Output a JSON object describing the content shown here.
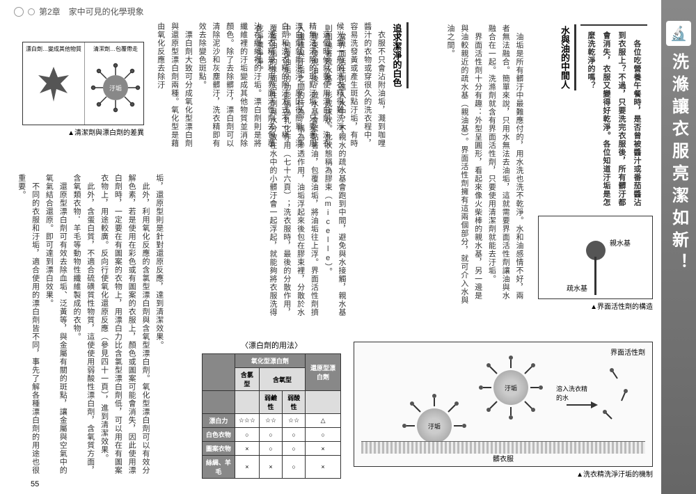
{
  "page": {
    "chapter_label": "第2章　家中可見的化學現象",
    "page_number": "55",
    "main_title": "洗滌讓衣服亮潔如新！"
  },
  "intro": {
    "text": "　各位吃營養午餐時，是否曾被醬汁或番茄醬沾到衣服上？不過，只要洗完衣服後，所有髒汙都會消失，衣服又變得好乾淨。各位知道汙垢是怎麼洗乾淨的嗎？"
  },
  "sections": {
    "s1_title": "水與油的中間人",
    "s1_body": "　油垢是所有髒汙中最難應付的，用水洗也洗不乾淨。水和油感情不好，兩者無法融合。簡單來說，只用水無法去油垢，這就需要界面活性劑讓油與水融合在一起。洗滌劑就含有界面活性劑，只要使用清潔劑就能去汙垢。\n　界面活性劑十分有趣：外型呈圓形，看起來像火柴棒的親水基，另一邊是與油較親近的疏水基（親油基）。界面活性劑擁有這兩個部分，就可介入水與油之間。",
    "s2_title": "追求潔淨的白色",
    "s2_top": "　衣服不只會沾附油垢，濺到咖哩醬汁的衣物或穿很久的洗衣程中，容易洗發黃或產生斑點汙垢，有時候光靠一般的洗衣精很難洗淨。\n　這個時候就要使用漂白劑。洗衣精無法清除的斑點汙垢，只要善用漂白劑就能洗淨。原因很簡單，漂白劑和洗衣精的除汙方式不一樣。\n　洗衣精是利用界面活性劑去包覆沾在纖維裡的汙垢。漂白劑則是將纖維裡的汙垢變成其他物質並消除顏色。除了去除髒汙，漂白劑可以清除泥沙和灰塵髒汙，洗衣精即有效去除變色斑點。\n　漂白劑大致可分成氧化型漂白劑與還原型漂白劑兩種。氧化型是藉由氧化反應去除汙",
    "s2_right": "　當界面活性劑進入水中，不親水的疏水基會跑到中間，避免與水接觸，親水基則圍繞著疏水基，形成球狀。此狀態稱為膠束（micelle）。\n　膠束發現油後，疏水基會緊黏著油，包覆油垢，將油垢往上浮。界面活性劑擠入纖維與汙垢之間的行為，稱為滲透作用，油垢浮起來後包在膠束裡，分散於水中。包覆油垢的功能稱為乳化作用（七十六頁）；洗衣服時，最後的分散作用，覆蓋油垢的界面活性劑與水分散在水中的小髒汙會一起浮起，就能夠將衣服洗得乾淨漂淨淨。",
    "s2_bottom": "垢，還原型則是針對還原反應，達到清潔效果。\n　此外，利用氧化反應的含氯型漂白劑與含氧型漂白劑。氧化型漂白劑可以有效分解色素，若是使用在彩色或有圖案的衣服上，顏色或圖案可能會消失，因此使用漂白劑時，一定要在有圖案的衣物上，用漂白力比含氯型漂白劑低，可以用在有圖案衣物上，用途較廣。反向行使氧化還原反應（參見四十一頁），進到清潔效果。\n　此外，含蛋白質，不適合硫磺質性物質，這使使用弱酸性漂白劑，含氧質方面，含氧類衣物．羊毛等動物性纖維製成的衣物。\n　還原型漂白劑可有效去除血垢、泛黃等，與金屬有關的斑點，讓金屬與空氣中的氧氣結合還原。即可達到漂白效果。\n　不同的衣服和汙垢，適合使用的漂白劑皆不同，事先了解各種漂白劑的用途也很重要。"
  },
  "figures": {
    "surfactant": {
      "caption": "▲界面活性劑的構造",
      "label_hydrophobic": "疏水基",
      "label_hydrophilic": "親水基"
    },
    "micelle": {
      "caption": "▲洗衣精洗淨汙垢的機制",
      "label_surfactant": "界面活性劑",
      "label_dirt": "汙垢",
      "label_water": "溶入洗衣精的水",
      "label_clothes": "髒衣服"
    },
    "bleach_compare": {
      "caption": "▲清潔劑與漂白劑的差異",
      "left_label": "漂白劑…變成其他物質",
      "right_label": "清潔劑…包覆帶走",
      "dirt_label": "汙垢"
    }
  },
  "table": {
    "title": "〈漂白劑的用法〉",
    "header_group1": "氧化型漂白劑",
    "header_group2": "還原型漂白劑",
    "header_sub_chlorine": "含氯型",
    "header_sub_oxygen": "含氧型",
    "header_sub_alk": "弱鹼性",
    "header_sub_acid": "弱酸性",
    "rows": [
      {
        "label": "漂白力",
        "v": [
          "☆☆☆",
          "☆☆",
          "☆☆",
          "△"
        ]
      },
      {
        "label": "白色衣物",
        "v": [
          "○",
          "○",
          "○",
          "○"
        ]
      },
      {
        "label": "圖案衣物",
        "v": [
          "×",
          "○",
          "○",
          "×"
        ]
      },
      {
        "label": "絲綢、羊毛",
        "v": [
          "×",
          "×",
          "○",
          "×"
        ]
      }
    ]
  }
}
